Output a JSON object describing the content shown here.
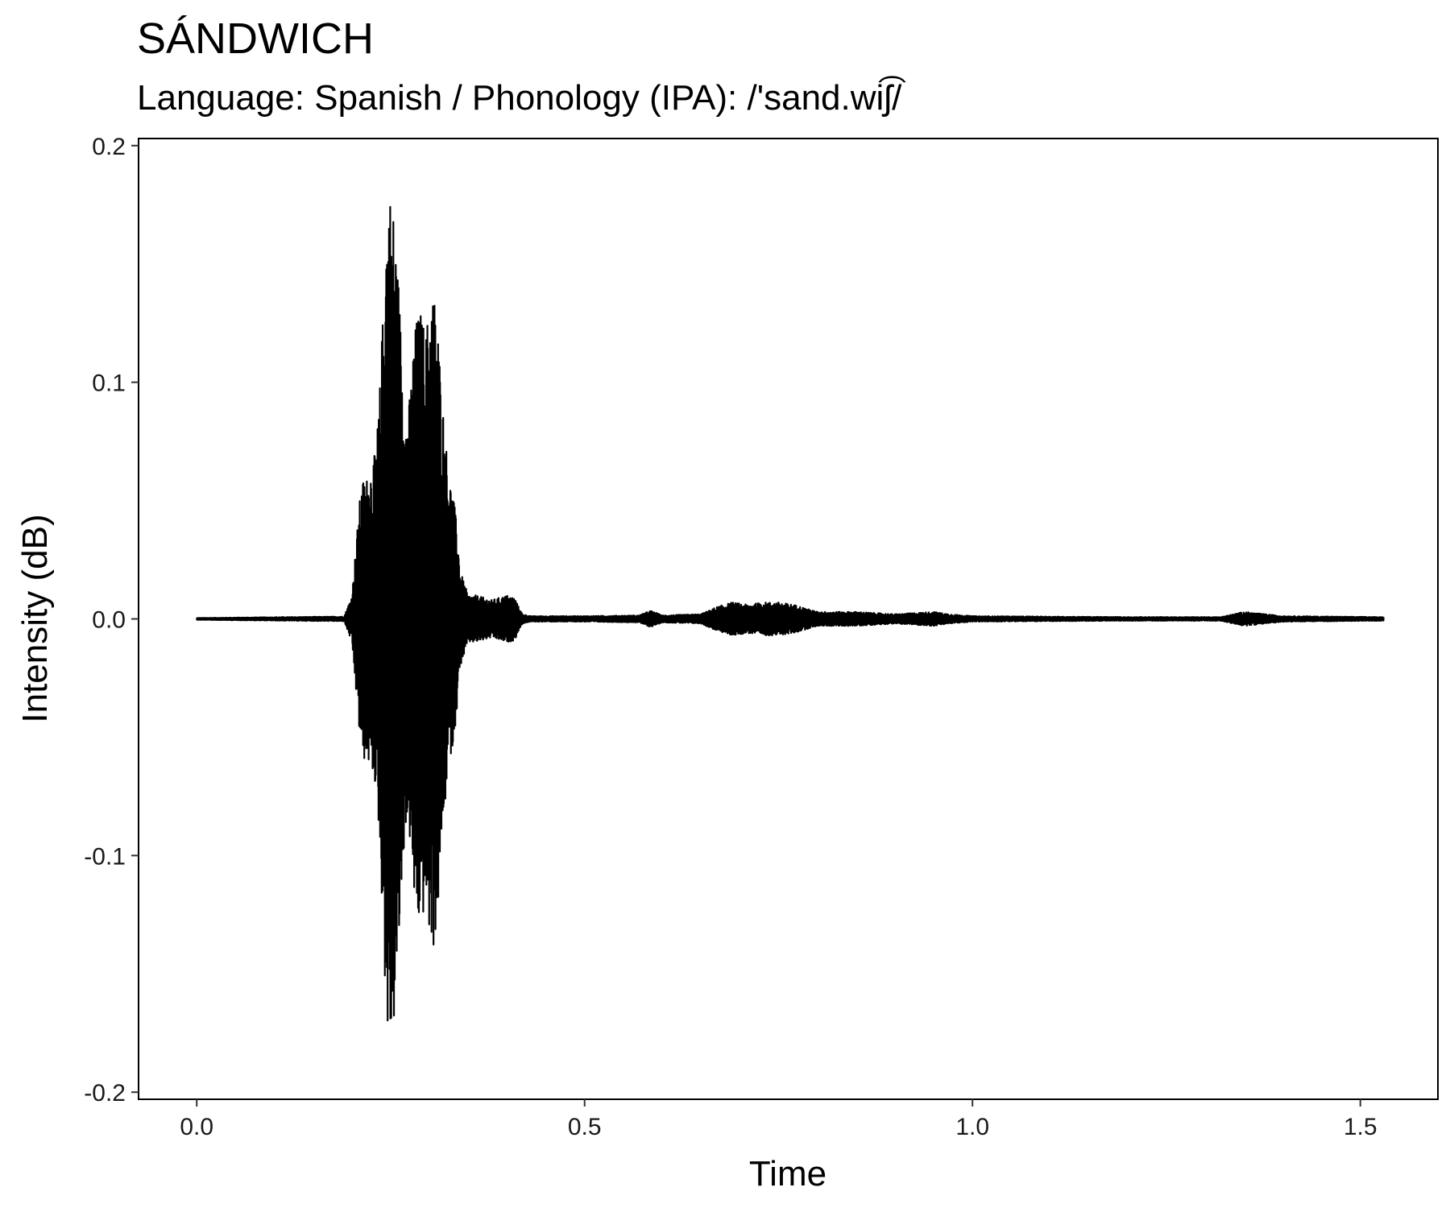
{
  "chart_data": {
    "type": "line",
    "title": "SÁNDWICH",
    "subtitle": "Language: Spanish / Phonology (IPA): /'sand.wiʃ͡/",
    "xlabel": "Time",
    "ylabel": "Intensity (dB)",
    "xlim": [
      -0.075,
      1.6
    ],
    "ylim": [
      -0.203,
      0.203
    ],
    "x_ticks": [
      0.0,
      0.5,
      1.0,
      1.5
    ],
    "x_tick_labels": [
      "0.0",
      "0.5",
      "1.0",
      "1.5"
    ],
    "y_ticks": [
      0.2,
      0.1,
      0.0,
      -0.1,
      -0.2
    ],
    "y_tick_labels": [
      "0.2",
      "0.1",
      "0.0",
      "-0.1",
      "-0.2"
    ],
    "grid": false,
    "legend": "none",
    "line_color": "#000000",
    "series": [
      {
        "x": [
          0.0,
          0.12,
          0.19,
          0.2,
          0.205,
          0.21,
          0.215,
          0.22,
          0.225,
          0.23,
          0.235,
          0.24,
          0.245,
          0.25,
          0.255,
          0.26,
          0.265,
          0.27,
          0.275,
          0.28,
          0.285,
          0.29,
          0.295,
          0.3,
          0.305,
          0.31,
          0.315,
          0.32,
          0.325,
          0.33,
          0.335,
          0.34,
          0.35,
          0.36,
          0.37,
          0.38,
          0.39,
          0.4,
          0.41,
          0.415,
          0.42,
          0.43,
          0.5,
          0.57,
          0.585,
          0.6,
          0.65,
          0.67,
          0.69,
          0.71,
          0.73,
          0.75,
          0.77,
          0.8,
          0.85,
          0.9,
          0.95,
          0.97,
          1.0,
          1.2,
          1.32,
          1.35,
          1.4,
          1.53
        ],
        "env": [
          0.0004,
          0.0008,
          0.001,
          0.01,
          0.03,
          0.05,
          0.06,
          0.06,
          0.065,
          0.07,
          0.09,
          0.13,
          0.175,
          0.182,
          0.17,
          0.145,
          0.11,
          0.085,
          0.095,
          0.12,
          0.13,
          0.13,
          0.12,
          0.135,
          0.14,
          0.13,
          0.1,
          0.08,
          0.06,
          0.055,
          0.04,
          0.02,
          0.01,
          0.01,
          0.009,
          0.008,
          0.009,
          0.01,
          0.009,
          0.005,
          0.002,
          0.0012,
          0.0012,
          0.0015,
          0.0035,
          0.0015,
          0.002,
          0.005,
          0.007,
          0.006,
          0.007,
          0.007,
          0.006,
          0.003,
          0.003,
          0.002,
          0.003,
          0.002,
          0.0012,
          0.0008,
          0.0008,
          0.003,
          0.0012,
          0.0008
        ]
      }
    ]
  }
}
